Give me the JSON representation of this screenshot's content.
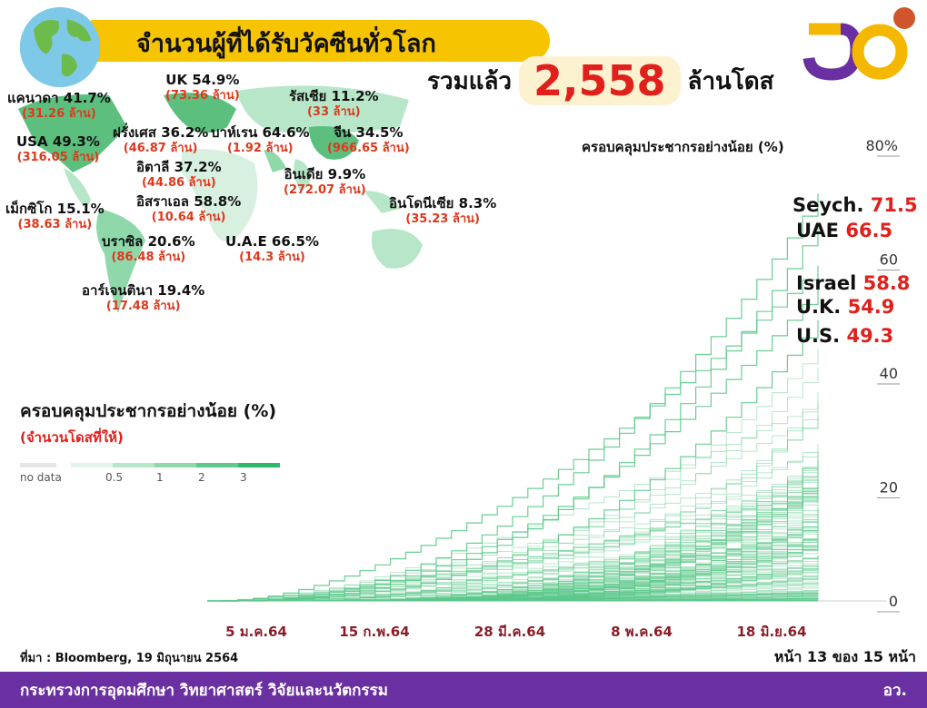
{
  "header": {
    "title": "จำนวนผู้ที่ได้รับวัคซีนทั่วโลก",
    "total_prefix": "รวมแล้ว",
    "total_value": "2,558",
    "total_suffix": "ล้านโดส"
  },
  "logo": {
    "text": "กระทรวงการอุดมศึกษา วิทยาศาสตร์ วิจัยและนวัตกรรม",
    "colors": [
      "#f5b800",
      "#6a2fa0",
      "#d0552a"
    ]
  },
  "map": {
    "labels": [
      {
        "name": "แคนาดา 41.7%",
        "doses": "(31.26 ล้าน)"
      },
      {
        "name": "UK 54.9%",
        "doses": "(73.36 ล้าน)"
      },
      {
        "name": "รัสเซีย 11.2%",
        "doses": "(33 ล้าน)"
      },
      {
        "name": "USA 49.3%",
        "doses": "(316.05 ล้าน)"
      },
      {
        "name": "ฝรั่งเศส 36.2%",
        "doses": "(46.87 ล้าน)"
      },
      {
        "name": "อิตาลี 37.2%",
        "doses": "(44.86 ล้าน)"
      },
      {
        "name": "บาห์เรน 64.6%",
        "doses": "(1.92 ล้าน)"
      },
      {
        "name": "จีน 34.5%",
        "doses": "(966.65 ล้าน)"
      },
      {
        "name": "อินเดีย 9.9%",
        "doses": "(272.07 ล้าน)"
      },
      {
        "name": "อิสราเอล 58.8%",
        "doses": "(10.64 ล้าน)"
      },
      {
        "name": "เม็กซิโก 15.1%",
        "doses": "(38.63 ล้าน)"
      },
      {
        "name": "อินโดนีเซีย 8.3%",
        "doses": "(35.23 ล้าน)"
      },
      {
        "name": "บราซิล 20.6%",
        "doses": "(86.48 ล้าน)"
      },
      {
        "name": "U.A.E 66.5%",
        "doses": "(14.3 ล้าน)"
      },
      {
        "name": "อาร์เจนตินา 19.4%",
        "doses": "(17.48 ล้าน)"
      }
    ]
  },
  "legend": {
    "title": "ครอบคลุมประชากรอย่างน้อย (%)",
    "subtitle": "(จำนวนโดสที่ให้)",
    "ticks": [
      "no data",
      "0.5",
      "1",
      "2",
      "3"
    ],
    "colors": [
      "#e6e6e6",
      "#e3f5ea",
      "#b7e6c8",
      "#8fd8aa",
      "#5ec98a",
      "#2fb86a"
    ]
  },
  "chart_data": {
    "type": "line",
    "title": "ครอบคลุมประชากรอย่างน้อย (%)",
    "ylim": [
      0,
      80
    ],
    "yticks": [
      "0",
      "20",
      "40",
      "60",
      "80%"
    ],
    "xticks": [
      "5 ม.ค.64",
      "15 ก.พ.64",
      "28 มี.ค.64",
      "8 พ.ค.64",
      "18 มิ.ย.64"
    ],
    "line_color": "#5cc98a",
    "highlighted": [
      {
        "name": "Seych.",
        "value": "71.5"
      },
      {
        "name": "UAE",
        "value": "66.5"
      },
      {
        "name": "Israel",
        "value": "58.8"
      },
      {
        "name": "U.K.",
        "value": "54.9"
      },
      {
        "name": "U.S.",
        "value": "49.3"
      }
    ]
  },
  "footer": {
    "source": "ที่มา : Bloomberg, 19 มิถุนายน 2564",
    "page": "หน้า 13 ของ 15 หน้า",
    "ministry": "กระทรวงการอุดมศึกษา วิทยาศาสตร์ วิจัยและนวัตกรรม",
    "abbr": "อว."
  }
}
